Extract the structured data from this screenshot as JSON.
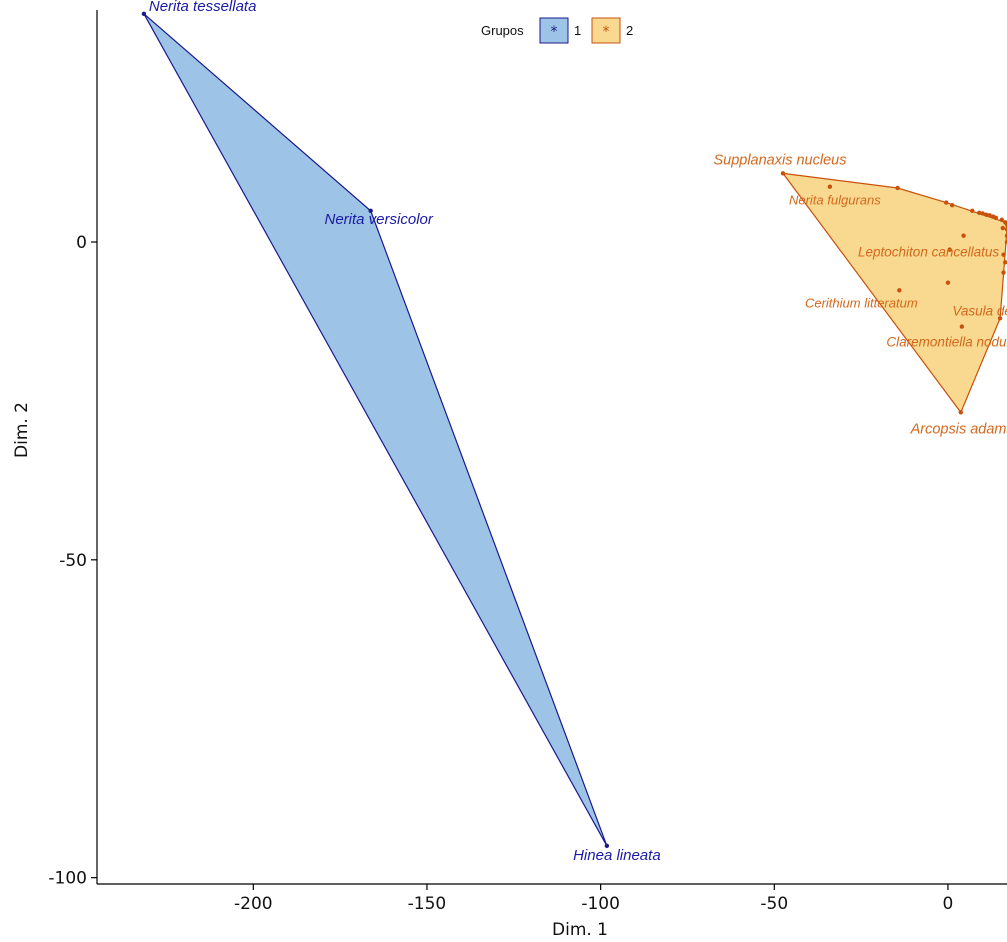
{
  "chart_data": {
    "type": "scatter",
    "title": "",
    "xlabel": "Dim. 1",
    "ylabel": "Dim. 2",
    "xlim": [
      -245,
      17
    ],
    "ylim": [
      -101,
      36.5
    ],
    "xticks": [
      -200,
      -150,
      -100,
      -50,
      0
    ],
    "xtick_labels": [
      "-200",
      "-150",
      "-100",
      "-50",
      "0"
    ],
    "yticks": [
      0,
      -50,
      -100
    ],
    "ytick_labels": [
      "0",
      "-50",
      "-100"
    ],
    "grid": false,
    "legend": {
      "title": "Grupos",
      "position": "top-center",
      "entries": [
        {
          "label": "1",
          "symbol": "*"
        },
        {
          "label": "2",
          "symbol": "*"
        }
      ]
    },
    "series": [
      {
        "name": "1",
        "color": "#1a1a8c",
        "label_color": "#1a1aa6",
        "fill": "#9dc3e6",
        "hull": [
          [
            -231.5,
            35.9
          ],
          [
            -166.2,
            4.9
          ],
          [
            -98.2,
            -95.0
          ]
        ],
        "points": [
          {
            "x": -231.5,
            "y": 35.9
          },
          {
            "x": -166.2,
            "y": 4.9
          },
          {
            "x": -98.2,
            "y": -95.0
          }
        ],
        "labels": [
          {
            "text": "Nerita tessellata",
            "x": -231.5,
            "y": 35.9,
            "dx": 5,
            "dy": -3,
            "anchor": "start",
            "size": 15
          },
          {
            "text": "Nerita versicolor",
            "x": -166.2,
            "y": 4.9,
            "dx": 8,
            "dy": 13,
            "anchor": "middle",
            "size": 15
          },
          {
            "text": "Hinea lineata",
            "x": -98.2,
            "y": -95.0,
            "dx": 10,
            "dy": 14,
            "anchor": "middle",
            "size": 15
          }
        ]
      },
      {
        "name": "2",
        "color": "#c8510c",
        "label_color": "#d2691e",
        "fill": "#f9d98f",
        "hull": [
          [
            -47.5,
            10.8
          ],
          [
            -14.5,
            8.5
          ],
          [
            -0.5,
            6.2
          ],
          [
            16.5,
            3.1
          ],
          [
            17.0,
            2.0
          ],
          [
            15.0,
            -12.0
          ],
          [
            3.7,
            -26.8
          ]
        ],
        "points": [
          {
            "x": -47.5,
            "y": 10.8
          },
          {
            "x": -34.0,
            "y": 8.7
          },
          {
            "x": -14.5,
            "y": 8.5
          },
          {
            "x": -0.5,
            "y": 6.2
          },
          {
            "x": 1.2,
            "y": 5.8
          },
          {
            "x": 7.0,
            "y": 4.9
          },
          {
            "x": 9.0,
            "y": 4.6
          },
          {
            "x": 10.0,
            "y": 4.5
          },
          {
            "x": 11.0,
            "y": 4.3
          },
          {
            "x": 12.0,
            "y": 4.2
          },
          {
            "x": 13.0,
            "y": 4.0
          },
          {
            "x": 13.8,
            "y": 3.8
          },
          {
            "x": 15.5,
            "y": 3.5
          },
          {
            "x": 16.5,
            "y": 3.1
          },
          {
            "x": 17.0,
            "y": 2.8
          },
          {
            "x": 17.0,
            "y": 2.0
          },
          {
            "x": 17.0,
            "y": 1.0
          },
          {
            "x": 17.0,
            "y": 0.0
          },
          {
            "x": 15.8,
            "y": 2.2
          },
          {
            "x": 16.0,
            "y": -2.0
          },
          {
            "x": 16.5,
            "y": -3.2
          },
          {
            "x": 16.0,
            "y": -4.8
          },
          {
            "x": 4.5,
            "y": 1.0
          },
          {
            "x": 0.5,
            "y": -1.2
          },
          {
            "x": 0.0,
            "y": -6.4
          },
          {
            "x": -14.0,
            "y": -7.6
          },
          {
            "x": 4.0,
            "y": -13.3
          },
          {
            "x": 15.0,
            "y": -12.0
          },
          {
            "x": 3.7,
            "y": -26.8
          }
        ],
        "labels": [
          {
            "text": "Supplanaxis nucleus",
            "x": -47.5,
            "y": 10.8,
            "dx": -3,
            "dy": -9,
            "anchor": "middle",
            "size": 14.5
          },
          {
            "text": "Nerita fulgurans",
            "x": -34.0,
            "y": 8.7,
            "dx": 5,
            "dy": 18,
            "anchor": "middle",
            "size": 13
          },
          {
            "text": "Leptochiton cancellatus",
            "x": 4.5,
            "y": 1.0,
            "dx": -35,
            "dy": 21,
            "anchor": "middle",
            "size": 13.5
          },
          {
            "text": "Cerithium litteratum",
            "x": -14.0,
            "y": -7.6,
            "dx": -38,
            "dy": 17,
            "anchor": "middle",
            "size": 13
          },
          {
            "text": "Vasula deltoidea",
            "x": 15.0,
            "y": -12.0,
            "dx": 2,
            "dy": -3,
            "anchor": "middle",
            "size": 13.5
          },
          {
            "text": "Claremontiella nodulosa",
            "x": 4.0,
            "y": -13.3,
            "dx": -3,
            "dy": 20,
            "anchor": "middle",
            "size": 13.5
          },
          {
            "text": "Arcopsis adamsi",
            "x": 3.7,
            "y": -26.8,
            "dx": 3,
            "dy": 21,
            "anchor": "middle",
            "size": 14.5
          }
        ]
      }
    ]
  }
}
